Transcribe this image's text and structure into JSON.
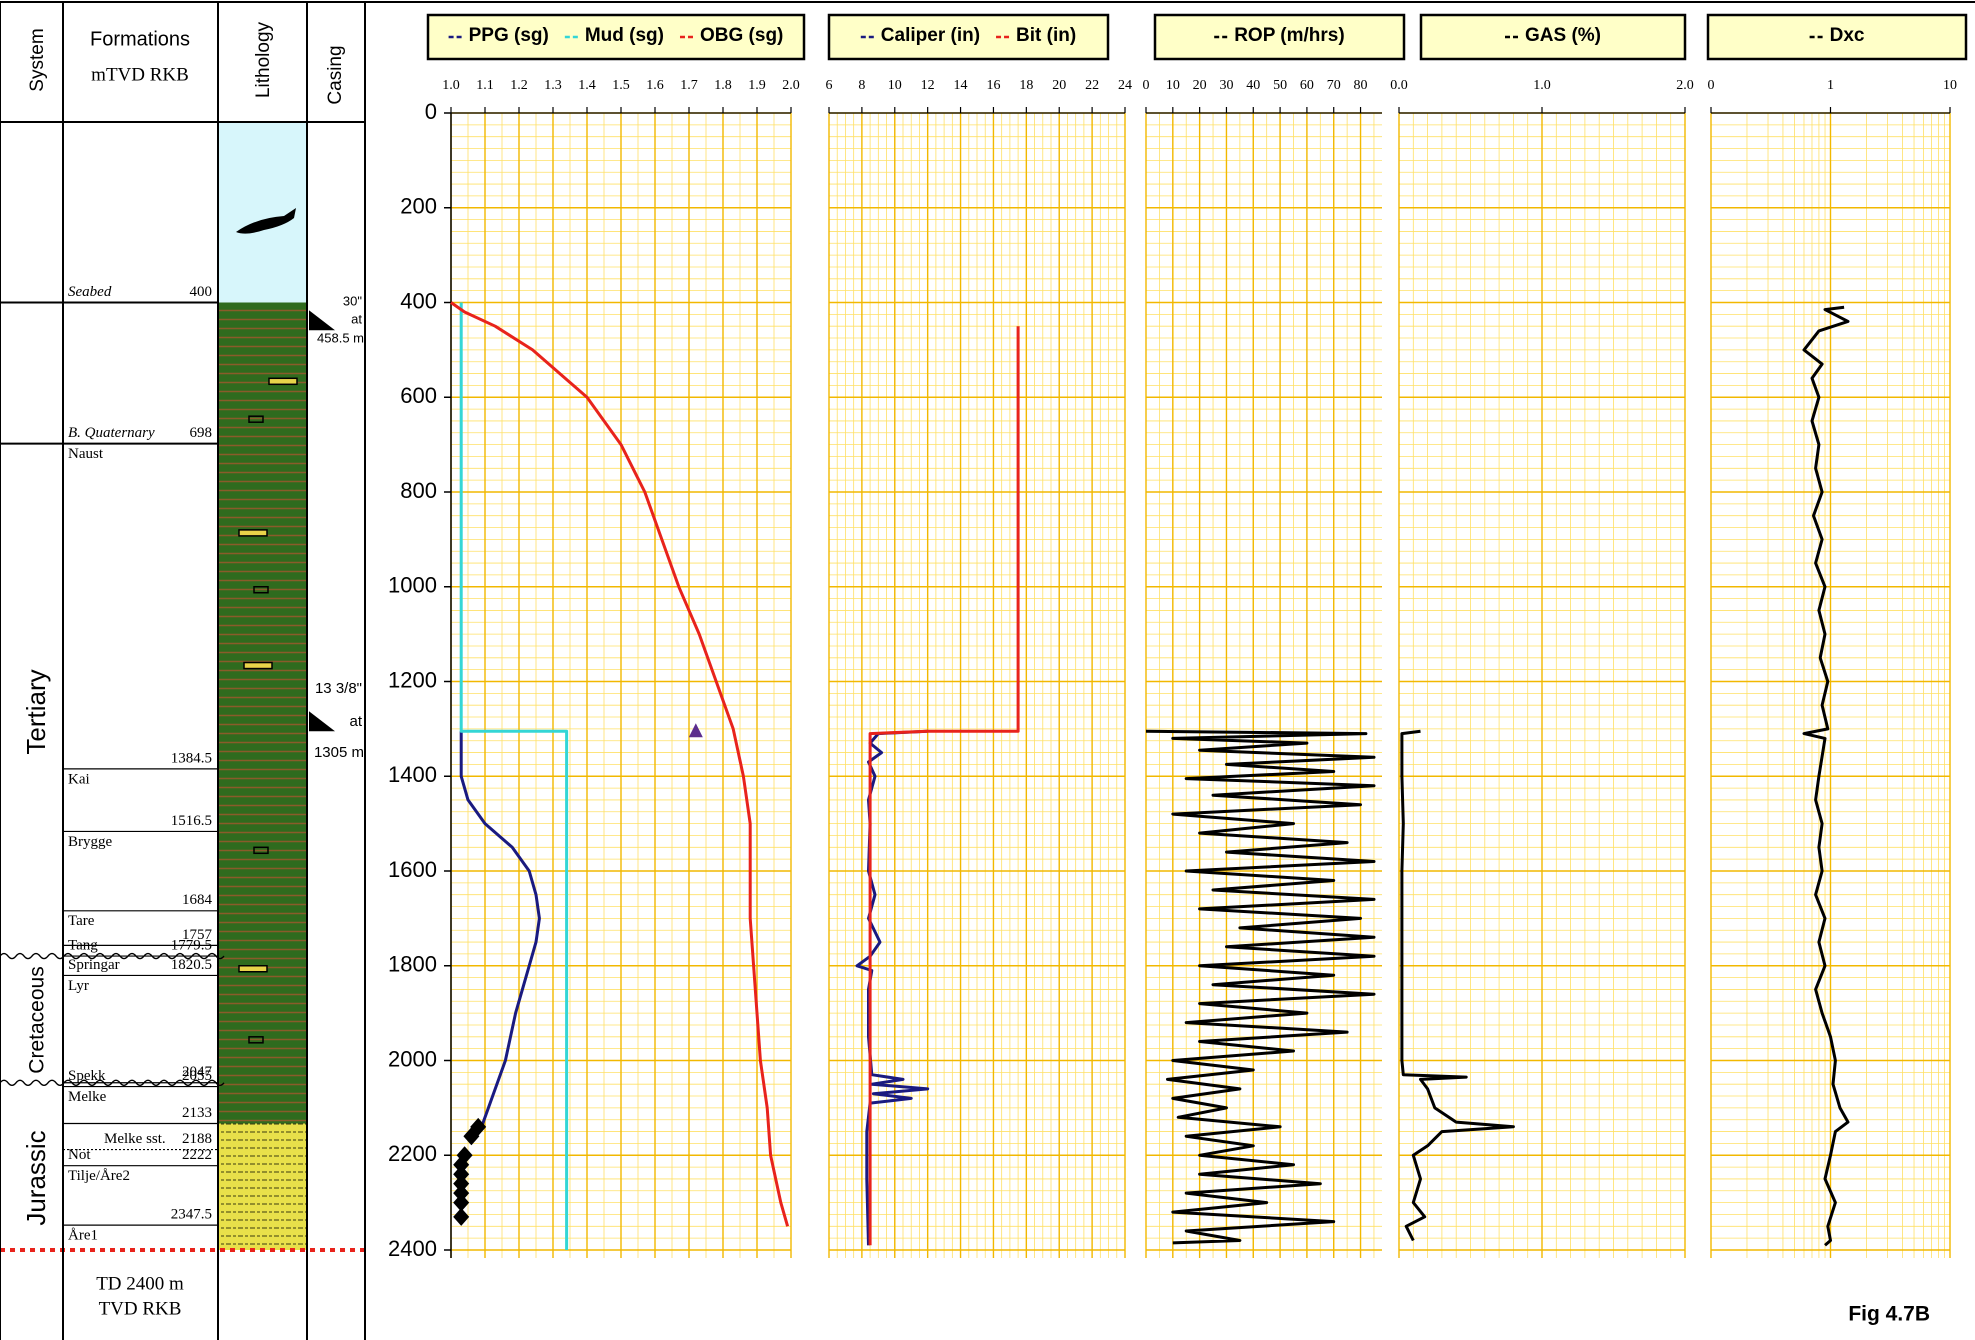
{
  "strat_column": {
    "headers": {
      "system": "System",
      "formations": "Formations",
      "depth_ref": "mTVD RKB",
      "lithology": "Lithology",
      "casing": "Casing"
    },
    "systems": [
      "Tertiary",
      "Cretaceous",
      "Jurassic"
    ],
    "formations": [
      {
        "name": "Seabed",
        "base": 400
      },
      {
        "name": "B. Quaternary",
        "base": 698
      },
      {
        "name": "Naust",
        "base": 1384.5
      },
      {
        "name": "Kai",
        "base": 1516.5
      },
      {
        "name": "Brygge",
        "base": 1684
      },
      {
        "name": "Tare",
        "base": 1757
      },
      {
        "name": "Tang",
        "base": 1779.5
      },
      {
        "name": "Springar",
        "base": 1820.5
      },
      {
        "name": "Lyr",
        "base": 2047
      },
      {
        "name": "Spekk",
        "base": 2055
      },
      {
        "name": "Melke",
        "base": 2133
      },
      {
        "name": "Melke sst.",
        "base": 2188
      },
      {
        "name": "Not",
        "base": 2222
      },
      {
        "name": "Tilje/Åre2",
        "base": 2347.5
      },
      {
        "name": "Åre1"
      }
    ],
    "casing": [
      {
        "size": "30\"",
        "word": "at",
        "depth": {
          "value": 458.5,
          "label": "458.5 m"
        }
      },
      {
        "size": "13 3/8\"",
        "word": "at",
        "depth": {
          "value": 1305,
          "label": "1305 m"
        }
      }
    ],
    "td": {
      "value": 2400,
      "lines": [
        "TD 2400 m",
        "TVD RKB"
      ]
    }
  },
  "figure_label": "Fig 4.7B",
  "chart_data": [
    {
      "type": "line",
      "xlim": [
        1.0,
        2.0
      ],
      "xticks": [
        {
          "value": 1.0,
          "label": "1.0"
        },
        1.1,
        1.2,
        1.3,
        1.4,
        1.5,
        1.6,
        1.7,
        1.8,
        1.9,
        {
          "value": 2.0,
          "label": "2.0"
        }
      ],
      "ylim": [
        0,
        2400
      ],
      "yticks": [
        0,
        200,
        400,
        600,
        800,
        1000,
        1200,
        1400,
        1600,
        1800,
        2000,
        2200,
        2400
      ],
      "grid": true,
      "series": [
        {
          "name": "PPG (sg)",
          "color": "#1a1a80",
          "depth": [
            1305,
            1400,
            1450,
            1500,
            1550,
            1600,
            1650,
            1700,
            1750,
            1800,
            1900,
            2000,
            2100,
            2140
          ],
          "values": [
            1.03,
            1.03,
            1.05,
            1.1,
            1.18,
            1.23,
            1.25,
            1.26,
            1.25,
            1.23,
            1.19,
            1.16,
            1.11,
            1.09
          ]
        },
        {
          "name": "Mud (sg)",
          "color": "#33d6d6",
          "depth": [
            400,
            1305,
            1305,
            2400
          ],
          "values": [
            1.03,
            1.03,
            1.34,
            1.34
          ]
        },
        {
          "name": "OBG (sg)",
          "color": "#e8231c",
          "depth": [
            400,
            420,
            450,
            500,
            600,
            700,
            800,
            900,
            1000,
            1100,
            1200,
            1300,
            1400,
            1500,
            1700,
            1800,
            1900,
            2000,
            2100,
            2200,
            2300,
            2350
          ],
          "values": [
            1.0,
            1.04,
            1.13,
            1.24,
            1.4,
            1.5,
            1.57,
            1.62,
            1.67,
            1.73,
            1.78,
            1.83,
            1.86,
            1.88,
            1.88,
            1.89,
            1.9,
            1.91,
            1.93,
            1.94,
            1.97,
            1.99
          ]
        }
      ],
      "point_series": [
        {
          "marker": "diamond",
          "color": "#000000",
          "depth": [
            2140,
            2160,
            2200,
            2220,
            2240,
            2260,
            2280,
            2300,
            2330
          ],
          "values": [
            1.08,
            1.06,
            1.04,
            1.03,
            1.03,
            1.03,
            1.03,
            1.03,
            1.03
          ]
        },
        {
          "marker": "triangle",
          "color": "#5b2d8e",
          "depth": [
            1305
          ],
          "values": [
            1.72
          ]
        }
      ]
    },
    {
      "type": "line",
      "xlim": [
        6,
        24
      ],
      "xticks": [
        6,
        8,
        10,
        12,
        14,
        16,
        18,
        20,
        22,
        24
      ],
      "ylim": [
        0,
        2400
      ],
      "series": [
        {
          "name": "Caliper (in)",
          "color": "#1a1a80",
          "depth": [
            1305,
            1310,
            1330,
            1350,
            1370,
            1400,
            1450,
            1500,
            1600,
            1650,
            1700,
            1750,
            1780,
            1800,
            1810,
            1850,
            1950,
            2030,
            2040,
            2050,
            2060,
            2070,
            2080,
            2090,
            2150,
            2250,
            2390
          ],
          "values": [
            12,
            9,
            8.5,
            9.2,
            8.4,
            8.8,
            8.4,
            8.5,
            8.4,
            8.8,
            8.4,
            9.1,
            8.5,
            7.7,
            8.6,
            8.4,
            8.4,
            8.6,
            10.5,
            8.6,
            12,
            8.7,
            11,
            8.5,
            8.3,
            8.3,
            8.4
          ]
        },
        {
          "name": "Bit (in)",
          "color": "#e8231c",
          "depth": [
            450,
            1305,
            1305,
            1310,
            2390
          ],
          "values": [
            17.5,
            17.5,
            12,
            8.5,
            8.5
          ]
        }
      ]
    },
    {
      "type": "line",
      "xlim": [
        0,
        88
      ],
      "xticks": [
        0,
        10,
        20,
        30,
        40,
        50,
        60,
        70,
        80
      ],
      "ylim": [
        0,
        2400
      ],
      "series": [
        {
          "name": "ROP (m/hrs)",
          "color": "#000000",
          "depth": [
            1305,
            1310,
            1320,
            1330,
            1345,
            1360,
            1375,
            1390,
            1405,
            1420,
            1440,
            1460,
            1480,
            1500,
            1520,
            1540,
            1560,
            1580,
            1600,
            1620,
            1640,
            1660,
            1680,
            1700,
            1720,
            1740,
            1760,
            1780,
            1800,
            1820,
            1840,
            1860,
            1880,
            1900,
            1920,
            1940,
            1960,
            1980,
            2000,
            2020,
            2040,
            2060,
            2080,
            2100,
            2120,
            2140,
            2160,
            2180,
            2200,
            2220,
            2240,
            2260,
            2280,
            2300,
            2320,
            2340,
            2360,
            2380,
            2385
          ],
          "values": [
            0,
            82,
            10,
            60,
            20,
            85,
            30,
            70,
            15,
            85,
            25,
            80,
            10,
            55,
            20,
            75,
            30,
            85,
            15,
            70,
            25,
            85,
            20,
            80,
            35,
            85,
            30,
            85,
            20,
            70,
            25,
            85,
            20,
            60,
            15,
            75,
            20,
            55,
            10,
            40,
            8,
            35,
            10,
            30,
            12,
            50,
            15,
            40,
            20,
            55,
            20,
            65,
            15,
            45,
            10,
            70,
            15,
            35,
            10
          ]
        }
      ]
    },
    {
      "type": "line",
      "xlim": [
        0,
        2
      ],
      "xticks": [
        {
          "value": 0,
          "label": "0.0"
        },
        {
          "value": 1,
          "label": "1.0"
        },
        {
          "value": 2,
          "label": "2.0"
        }
      ],
      "ylim": [
        0,
        2400
      ],
      "series": [
        {
          "name": "GAS (%)",
          "color": "#000000",
          "depth": [
            1305,
            1310,
            1400,
            1500,
            1600,
            1700,
            1800,
            1900,
            2000,
            2030,
            2035,
            2040,
            2060,
            2100,
            2130,
            2140,
            2150,
            2180,
            2200,
            2250,
            2300,
            2330,
            2350,
            2380
          ],
          "values": [
            0.15,
            0.02,
            0.02,
            0.03,
            0.02,
            0.02,
            0.02,
            0.02,
            0.02,
            0.03,
            0.47,
            0.15,
            0.2,
            0.25,
            0.4,
            0.8,
            0.3,
            0.2,
            0.1,
            0.15,
            0.1,
            0.18,
            0.05,
            0.1
          ]
        }
      ]
    },
    {
      "type": "line",
      "log": true,
      "xlim": [
        0.1,
        10
      ],
      "xticks": [
        {
          "value": 0.1,
          "label": "0"
        },
        1,
        10
      ],
      "ylim": [
        0,
        2400
      ],
      "series": [
        {
          "name": "Dxc",
          "color": "#000000",
          "depth": [
            410,
            415,
            440,
            460,
            500,
            530,
            560,
            600,
            650,
            700,
            750,
            800,
            850,
            900,
            950,
            1000,
            1050,
            1100,
            1150,
            1200,
            1250,
            1300,
            1310,
            1320,
            1400,
            1450,
            1500,
            1550,
            1600,
            1650,
            1700,
            1750,
            1800,
            1850,
            1900,
            1950,
            2000,
            2050,
            2100,
            2130,
            2150,
            2200,
            2250,
            2300,
            2350,
            2380,
            2390
          ],
          "values": [
            1.3,
            0.9,
            1.4,
            0.8,
            0.6,
            0.85,
            0.7,
            0.8,
            0.7,
            0.8,
            0.75,
            0.85,
            0.72,
            0.85,
            0.75,
            0.9,
            0.8,
            0.9,
            0.82,
            0.95,
            0.85,
            0.95,
            0.6,
            0.9,
            0.8,
            0.75,
            0.85,
            0.8,
            0.85,
            0.75,
            0.9,
            0.8,
            0.9,
            0.75,
            0.85,
            1.0,
            1.1,
            1.05,
            1.2,
            1.4,
            1.1,
            1.0,
            0.9,
            1.1,
            0.95,
            1.0,
            0.9
          ]
        }
      ]
    }
  ]
}
